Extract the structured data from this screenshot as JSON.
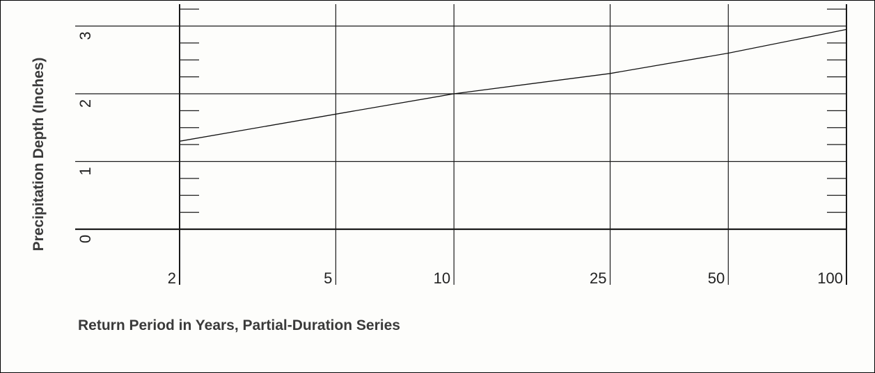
{
  "chart_data": {
    "type": "line",
    "xlabel": "Return Period in Years, Partial-Duration Series",
    "ylabel": "Precipitation Depth (Inches)",
    "x_scale": "log",
    "x_ticks": [
      2,
      5,
      10,
      25,
      50,
      100
    ],
    "x_tick_labels": [
      "2",
      "5",
      "10",
      "25",
      "50",
      "100"
    ],
    "y_ticks": [
      0,
      1,
      2,
      3
    ],
    "y_tick_labels": [
      "0",
      "1",
      "2",
      "3"
    ],
    "ylim": [
      0,
      3.3
    ],
    "grid": true,
    "series": [
      {
        "x": [
          2,
          5,
          10,
          25,
          50,
          100
        ],
        "y": [
          1.3,
          1.7,
          2.0,
          2.3,
          2.6,
          2.95
        ]
      }
    ]
  }
}
